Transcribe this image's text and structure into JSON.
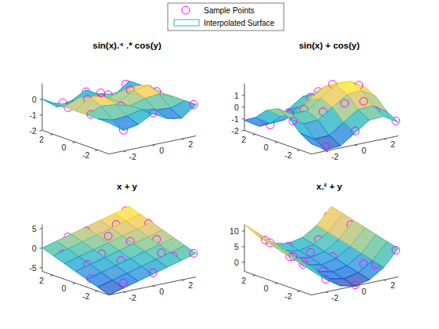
{
  "chart_data": [
    {
      "type": "surface",
      "title": "sin(x).⁴ .* cos(y)",
      "legend": "north",
      "xlim": [
        -3,
        3
      ],
      "ylim": [
        -3,
        3
      ],
      "zlim": [
        -2,
        1
      ],
      "xticks": [
        -2,
        0,
        2
      ],
      "yticks": [
        -2,
        0,
        2
      ],
      "zticks": [
        -2,
        -1,
        0
      ],
      "series": [
        {
          "name": "Sample Points",
          "type": "scatter",
          "marker": "circle",
          "color": "#ff00ff",
          "x": [
            -2.5,
            -1.7,
            -0.9,
            -0.2,
            0.6,
            1.4,
            2.2,
            2.8,
            -2.8,
            -1.3,
            0.1,
            1.0,
            1.9,
            2.6,
            -2.1,
            -0.5,
            0.4,
            1.6,
            -1.5,
            2.9
          ],
          "y": [
            1.8,
            -2.6,
            0.4,
            2.7,
            -1.3,
            2.1,
            -0.5,
            1.0,
            -1.1,
            2.9,
            -2.9,
            0.3,
            -2.4,
            2.8,
            0.1,
            -0.8,
            1.5,
            -1.7,
            -0.3,
            -2.9
          ],
          "z": [
            -0.03,
            -0.83,
            0.35,
            0.0,
            0.03,
            -0.48,
            0.37,
            0.01,
            0.01,
            -0.84,
            0.0,
            0.48,
            -0.59,
            -0.07,
            0.55,
            0.04,
            0.0,
            -0.13,
            0.94,
            0.0
          ]
        },
        {
          "name": "Interpolated Surface",
          "type": "surface",
          "color": "#1fb8c9",
          "x": [
            -3,
            -2,
            -1,
            0,
            1,
            2,
            3
          ],
          "y": [
            -3,
            -2,
            -1,
            0,
            1,
            2,
            3
          ],
          "z": [
            [
              0,
              -0.68,
              -0.5,
              0,
              -0.5,
              -0.68,
              0
            ],
            [
              0,
              -0.28,
              -0.21,
              0,
              -0.21,
              -0.28,
              0
            ],
            [
              0,
              0.37,
              0.27,
              0,
              0.27,
              0.37,
              0
            ],
            [
              0,
              0.68,
              0.5,
              0,
              0.5,
              0.68,
              0
            ],
            [
              0,
              0.37,
              0.27,
              0,
              0.27,
              0.37,
              0
            ],
            [
              0,
              -0.28,
              -0.21,
              0,
              -0.21,
              -0.28,
              0
            ],
            [
              0,
              -0.68,
              -0.5,
              0,
              -0.5,
              -0.68,
              0
            ]
          ]
        }
      ]
    },
    {
      "type": "surface",
      "title": "sin(x) + cos(y)",
      "xlim": [
        -3,
        3
      ],
      "ylim": [
        -3,
        3
      ],
      "zlim": [
        -2,
        2
      ],
      "xticks": [
        -2,
        0,
        2
      ],
      "yticks": [
        -2,
        0,
        2
      ],
      "zticks": [
        -2,
        -1,
        0,
        1
      ],
      "series": [
        {
          "type": "scatter",
          "marker": "circle",
          "color": "#ff00ff",
          "x": [
            -2.5,
            -1.7,
            -0.9,
            -0.2,
            0.6,
            1.4,
            2.2,
            2.8,
            -2.8,
            -1.3,
            0.1,
            1.0,
            1.9,
            2.6,
            -2.1,
            -0.5,
            0.4,
            1.6,
            -1.5,
            2.9
          ],
          "y": [
            1.8,
            -2.6,
            0.4,
            2.7,
            -1.3,
            2.1,
            -0.5,
            1.0,
            -1.1,
            2.9,
            -2.9,
            0.3,
            -2.4,
            2.8,
            0.1,
            -0.8,
            1.5,
            -1.7,
            -0.3,
            -2.9
          ],
          "z": [
            -0.83,
            -1.85,
            0.14,
            -1.1,
            0.83,
            0.48,
            1.69,
            0.88,
            0.12,
            -1.94,
            -0.87,
            1.8,
            0.21,
            -0.43,
            0.13,
            0.22,
            0.46,
            0.87,
            -0.04,
            -0.73
          ]
        },
        {
          "type": "surface",
          "x": [
            -3,
            -2,
            -1,
            0,
            1,
            2,
            3
          ],
          "y": [
            -3,
            -2,
            -1,
            0,
            1,
            2,
            3
          ],
          "z": [
            [
              -1.13,
              -1.9,
              -1.83,
              -0.99,
              -0.15,
              -0.08,
              -0.85
            ],
            [
              -0.56,
              -1.33,
              -1.26,
              -0.42,
              0.42,
              0.49,
              -0.28
            ],
            [
              0.4,
              -0.37,
              -0.3,
              0.54,
              1.38,
              1.45,
              0.68
            ],
            [
              0.86,
              0.09,
              0.16,
              1.0,
              1.84,
              1.91,
              1.14
            ],
            [
              0.4,
              -0.37,
              -0.3,
              0.54,
              1.38,
              1.45,
              0.68
            ],
            [
              -0.56,
              -1.33,
              -1.26,
              -0.42,
              0.42,
              0.49,
              -0.28
            ],
            [
              -1.13,
              -1.9,
              -1.83,
              -0.99,
              -0.15,
              -0.08,
              -0.85
            ]
          ]
        }
      ]
    },
    {
      "type": "surface",
      "title": "x + y",
      "xlim": [
        -3,
        3
      ],
      "ylim": [
        -3,
        3
      ],
      "zlim": [
        -6,
        6
      ],
      "xticks": [
        -2,
        0,
        2
      ],
      "yticks": [
        -2,
        0,
        2
      ],
      "zticks": [
        -5,
        0,
        5
      ],
      "series": [
        {
          "type": "scatter",
          "marker": "circle",
          "color": "#ff00ff",
          "x": [
            -2.5,
            -1.7,
            -0.9,
            -0.2,
            0.6,
            1.4,
            2.2,
            2.8,
            -2.8,
            -1.3,
            0.1,
            1.0,
            1.9,
            2.6,
            -2.1,
            -0.5,
            0.4,
            1.6,
            -1.5,
            2.9
          ],
          "y": [
            1.8,
            -2.6,
            0.4,
            2.7,
            -1.3,
            2.1,
            -0.5,
            1.0,
            -1.1,
            2.9,
            -2.9,
            0.3,
            -2.4,
            2.8,
            0.1,
            -0.8,
            1.5,
            -1.7,
            -0.3,
            -2.9
          ],
          "z": [
            -0.7,
            -4.3,
            -0.5,
            2.5,
            -0.7,
            3.5,
            1.7,
            3.8,
            -3.9,
            1.6,
            -2.8,
            1.3,
            -0.5,
            5.4,
            -2.0,
            -1.3,
            1.9,
            -0.1,
            -1.8,
            0.0
          ]
        },
        {
          "type": "surface",
          "x": [
            -3,
            -2,
            -1,
            0,
            1,
            2,
            3
          ],
          "y": [
            -3,
            -2,
            -1,
            0,
            1,
            2,
            3
          ],
          "z": [
            [
              -6,
              -5,
              -4,
              -3,
              -2,
              -1,
              0
            ],
            [
              -5,
              -4,
              -3,
              -2,
              -1,
              0,
              1
            ],
            [
              -4,
              -3,
              -2,
              -1,
              0,
              1,
              2
            ],
            [
              -3,
              -2,
              -1,
              0,
              1,
              2,
              3
            ],
            [
              -2,
              -1,
              0,
              1,
              2,
              3,
              4
            ],
            [
              -1,
              0,
              1,
              2,
              3,
              4,
              5
            ],
            [
              0,
              1,
              2,
              3,
              4,
              5,
              6
            ]
          ]
        }
      ]
    },
    {
      "type": "surface",
      "title": "x.² + y",
      "xlim": [
        -3,
        3
      ],
      "ylim": [
        -3,
        3
      ],
      "zlim": [
        -3,
        12
      ],
      "xticks": [
        -2,
        0,
        2
      ],
      "yticks": [
        -2,
        0,
        2
      ],
      "zticks": [
        0,
        5,
        10
      ],
      "series": [
        {
          "type": "scatter",
          "marker": "circle",
          "color": "#ff00ff",
          "x": [
            -2.5,
            -1.7,
            -0.9,
            -0.2,
            0.6,
            1.4,
            2.2,
            2.8,
            -2.8,
            -1.3,
            0.1,
            1.0,
            1.9,
            2.6,
            -2.1,
            -0.5,
            0.4,
            1.6,
            -1.5,
            2.9
          ],
          "y": [
            1.8,
            -2.6,
            0.4,
            2.7,
            -1.3,
            2.1,
            -0.5,
            1.0,
            -1.1,
            2.9,
            -2.9,
            0.3,
            -2.4,
            2.8,
            0.1,
            -0.8,
            1.5,
            -1.7,
            -0.3,
            -2.9
          ],
          "z": [
            8.05,
            0.29,
            1.21,
            2.74,
            -0.94,
            4.06,
            4.34,
            8.84,
            6.74,
            4.59,
            -2.89,
            1.3,
            1.21,
            9.56,
            4.51,
            -0.55,
            1.66,
            0.86,
            1.95,
            5.51
          ]
        },
        {
          "type": "surface",
          "x": [
            -3,
            -2,
            -1,
            0,
            1,
            2,
            3
          ],
          "y": [
            -3,
            -2,
            -1,
            0,
            1,
            2,
            3
          ],
          "z": [
            [
              6,
              1,
              -2,
              -3,
              -2,
              1,
              6
            ],
            [
              7,
              2,
              -1,
              -2,
              -1,
              2,
              7
            ],
            [
              8,
              3,
              0,
              -1,
              0,
              3,
              8
            ],
            [
              9,
              4,
              1,
              0,
              1,
              4,
              9
            ],
            [
              10,
              5,
              2,
              1,
              2,
              5,
              10
            ],
            [
              11,
              6,
              3,
              2,
              3,
              6,
              11
            ],
            [
              12,
              7,
              4,
              3,
              4,
              7,
              12
            ]
          ]
        }
      ]
    }
  ]
}
